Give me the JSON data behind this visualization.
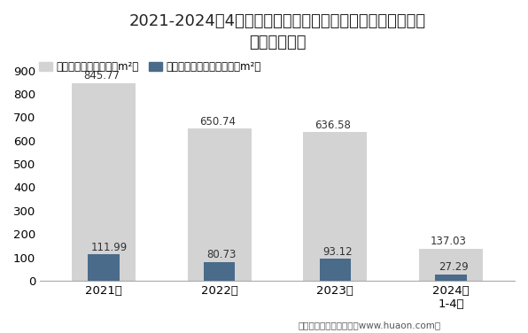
{
  "title_line1": "2021-2024年4月宁夏回族自治区房地产商品住宅及商品住宅",
  "title_line2": "现房销售面积",
  "categories": [
    "2021年",
    "2022年",
    "2023年",
    "2024年\n1-4月"
  ],
  "bar1_values": [
    845.77,
    650.74,
    636.58,
    137.03
  ],
  "bar2_values": [
    111.99,
    80.73,
    93.12,
    27.29
  ],
  "bar1_color": "#d3d3d3",
  "bar2_color": "#4a6b8a",
  "bar1_label": "商品住宅销售面积（万m²）",
  "bar2_label": "商品住宅现房销售面积（万m²）",
  "ylim": [
    0,
    950
  ],
  "yticks": [
    0,
    100,
    200,
    300,
    400,
    500,
    600,
    700,
    800,
    900
  ],
  "footer": "制图：华经产业研究院（www.huaon.com）",
  "background_color": "#ffffff",
  "title_fontsize": 13,
  "tick_fontsize": 9.5,
  "label_fontsize": 8.5,
  "legend_fontsize": 8.5,
  "footer_fontsize": 7.5
}
